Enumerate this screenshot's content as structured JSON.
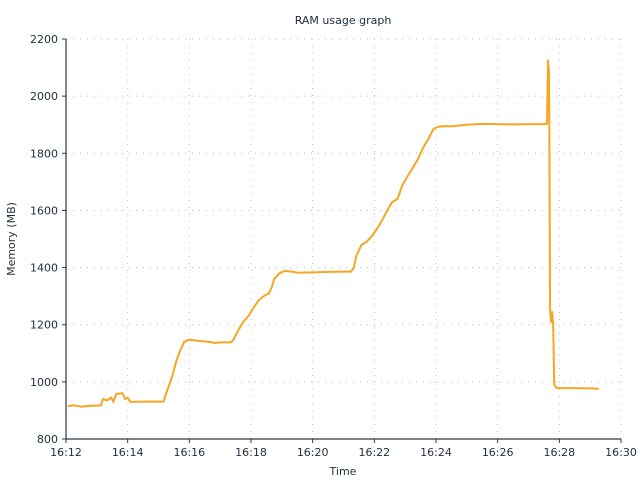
{
  "chart_data": {
    "type": "line",
    "title": "RAM usage graph",
    "xlabel": "Time",
    "ylabel": "Memory (MB)",
    "xlim": [
      "16:12",
      "16:30"
    ],
    "ylim": [
      800,
      2200
    ],
    "x_ticks": [
      "16:12",
      "16:14",
      "16:16",
      "16:18",
      "16:20",
      "16:22",
      "16:24",
      "16:26",
      "16:28",
      "16:30"
    ],
    "y_ticks": [
      800,
      1000,
      1200,
      1400,
      1600,
      1800,
      2000,
      2200
    ],
    "grid": true,
    "series": [
      {
        "color": "#f5a623",
        "points": [
          [
            "16:12:05",
            915
          ],
          [
            "16:12:15",
            918
          ],
          [
            "16:12:30",
            913
          ],
          [
            "16:12:45",
            916
          ],
          [
            "16:13:00",
            917
          ],
          [
            "16:13:08",
            917
          ],
          [
            "16:13:12",
            940
          ],
          [
            "16:13:20",
            935
          ],
          [
            "16:13:28",
            945
          ],
          [
            "16:13:32",
            930
          ],
          [
            "16:13:38",
            958
          ],
          [
            "16:13:50",
            960
          ],
          [
            "16:13:55",
            940
          ],
          [
            "16:14:00",
            944
          ],
          [
            "16:14:05",
            930
          ],
          [
            "16:14:30",
            931
          ],
          [
            "16:15:00",
            931
          ],
          [
            "16:15:10",
            931
          ],
          [
            "16:15:15",
            960
          ],
          [
            "16:15:25",
            1010
          ],
          [
            "16:15:30",
            1040
          ],
          [
            "16:15:35",
            1075
          ],
          [
            "16:15:40",
            1100
          ],
          [
            "16:15:45",
            1120
          ],
          [
            "16:15:50",
            1140
          ],
          [
            "16:16:00",
            1148
          ],
          [
            "16:16:20",
            1143
          ],
          [
            "16:16:40",
            1140
          ],
          [
            "16:16:50",
            1136
          ],
          [
            "16:17:00",
            1138
          ],
          [
            "16:17:20",
            1138
          ],
          [
            "16:17:25",
            1145
          ],
          [
            "16:17:35",
            1180
          ],
          [
            "16:17:45",
            1210
          ],
          [
            "16:17:55",
            1230
          ],
          [
            "16:18:05",
            1260
          ],
          [
            "16:18:15",
            1285
          ],
          [
            "16:18:25",
            1300
          ],
          [
            "16:18:35",
            1310
          ],
          [
            "16:18:40",
            1330
          ],
          [
            "16:18:45",
            1360
          ],
          [
            "16:18:55",
            1380
          ],
          [
            "16:19:05",
            1388
          ],
          [
            "16:19:20",
            1386
          ],
          [
            "16:19:30",
            1382
          ],
          [
            "16:20:00",
            1383
          ],
          [
            "16:20:30",
            1385
          ],
          [
            "16:21:00",
            1386
          ],
          [
            "16:21:15",
            1386
          ],
          [
            "16:21:20",
            1400
          ],
          [
            "16:21:25",
            1440
          ],
          [
            "16:21:30",
            1460
          ],
          [
            "16:21:35",
            1480
          ],
          [
            "16:21:45",
            1490
          ],
          [
            "16:21:55",
            1510
          ],
          [
            "16:22:05",
            1535
          ],
          [
            "16:22:15",
            1565
          ],
          [
            "16:22:25",
            1600
          ],
          [
            "16:22:35",
            1630
          ],
          [
            "16:22:45",
            1640
          ],
          [
            "16:22:55",
            1690
          ],
          [
            "16:23:05",
            1720
          ],
          [
            "16:23:15",
            1750
          ],
          [
            "16:23:25",
            1780
          ],
          [
            "16:23:35",
            1820
          ],
          [
            "16:23:45",
            1850
          ],
          [
            "16:23:55",
            1885
          ],
          [
            "16:24:05",
            1893
          ],
          [
            "16:24:15",
            1895
          ],
          [
            "16:24:30",
            1894
          ],
          [
            "16:25:00",
            1900
          ],
          [
            "16:25:30",
            1903
          ],
          [
            "16:26:00",
            1902
          ],
          [
            "16:26:30",
            1901
          ],
          [
            "16:27:00",
            1902
          ],
          [
            "16:27:30",
            1902
          ],
          [
            "16:27:36",
            1903
          ],
          [
            "16:27:38",
            2125
          ],
          [
            "16:27:40",
            2080
          ],
          [
            "16:27:42",
            1250
          ],
          [
            "16:27:44",
            1210
          ],
          [
            "16:27:46",
            1245
          ],
          [
            "16:27:48",
            1200
          ],
          [
            "16:27:50",
            990
          ],
          [
            "16:27:55",
            978
          ],
          [
            "16:28:30",
            978
          ],
          [
            "16:29:00",
            977
          ],
          [
            "16:29:15",
            976
          ]
        ]
      }
    ]
  }
}
